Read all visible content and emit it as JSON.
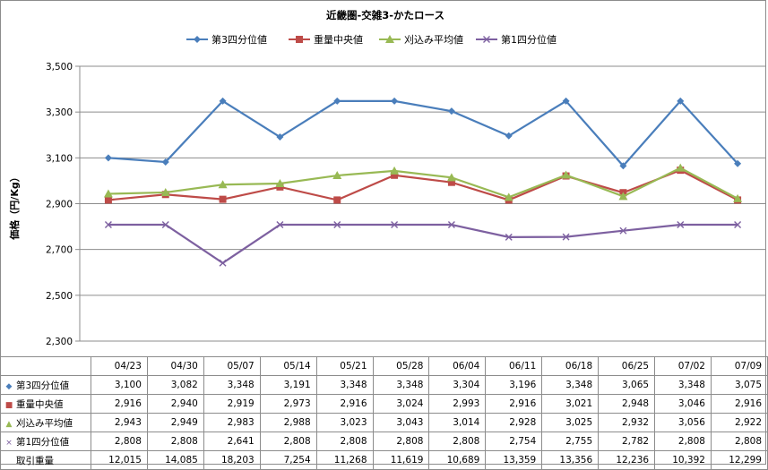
{
  "chart_data": {
    "type": "line",
    "title": "近畿圏-交雑3-かたロース",
    "ylabel": "価格（円/Kg）",
    "ylim": [
      2300,
      3500
    ],
    "yticks": [
      "2,300",
      "2,500",
      "2,700",
      "2,900",
      "3,100",
      "3,300",
      "3,500"
    ],
    "ytick_values": [
      2300,
      2500,
      2700,
      2900,
      3100,
      3300,
      3500
    ],
    "grid": true,
    "legend_position": "top",
    "categories": [
      "04/23",
      "04/30",
      "05/07",
      "05/14",
      "05/21",
      "05/28",
      "06/04",
      "06/11",
      "06/18",
      "06/25",
      "07/02",
      "07/09"
    ],
    "series": [
      {
        "name": "第3四分位値",
        "marker": "diamond",
        "color": "#4a7ebb",
        "values": [
          3100,
          3082,
          3348,
          3191,
          3348,
          3348,
          3304,
          3196,
          3348,
          3065,
          3348,
          3075
        ],
        "labels": [
          "3,100",
          "3,082",
          "3,348",
          "3,191",
          "3,348",
          "3,348",
          "3,304",
          "3,196",
          "3,348",
          "3,065",
          "3,348",
          "3,075"
        ]
      },
      {
        "name": "重量中央値",
        "marker": "square",
        "color": "#be4b48",
        "values": [
          2916,
          2940,
          2919,
          2973,
          2916,
          3024,
          2993,
          2916,
          3021,
          2948,
          3046,
          2916
        ],
        "labels": [
          "2,916",
          "2,940",
          "2,919",
          "2,973",
          "2,916",
          "3,024",
          "2,993",
          "2,916",
          "3,021",
          "2,948",
          "3,046",
          "2,916"
        ]
      },
      {
        "name": "刈込み平均値",
        "marker": "triangle",
        "color": "#98b954",
        "values": [
          2943,
          2949,
          2983,
          2988,
          3023,
          3043,
          3014,
          2928,
          3025,
          2932,
          3056,
          2922
        ],
        "labels": [
          "2,943",
          "2,949",
          "2,983",
          "2,988",
          "3,023",
          "3,043",
          "3,014",
          "2,928",
          "3,025",
          "2,932",
          "3,056",
          "2,922"
        ]
      },
      {
        "name": "第1四分位値",
        "marker": "x",
        "color": "#7d60a0",
        "values": [
          2808,
          2808,
          2641,
          2808,
          2808,
          2808,
          2808,
          2754,
          2755,
          2782,
          2808,
          2808
        ],
        "labels": [
          "2,808",
          "2,808",
          "2,641",
          "2,808",
          "2,808",
          "2,808",
          "2,808",
          "2,754",
          "2,755",
          "2,782",
          "2,808",
          "2,808"
        ]
      }
    ],
    "extra_row": {
      "name": "取引重量",
      "values": [
        "12,015",
        "14,085",
        "18,203",
        "7,254",
        "11,268",
        "11,619",
        "10,689",
        "13,359",
        "13,356",
        "12,236",
        "10,392",
        "12,299"
      ]
    }
  }
}
